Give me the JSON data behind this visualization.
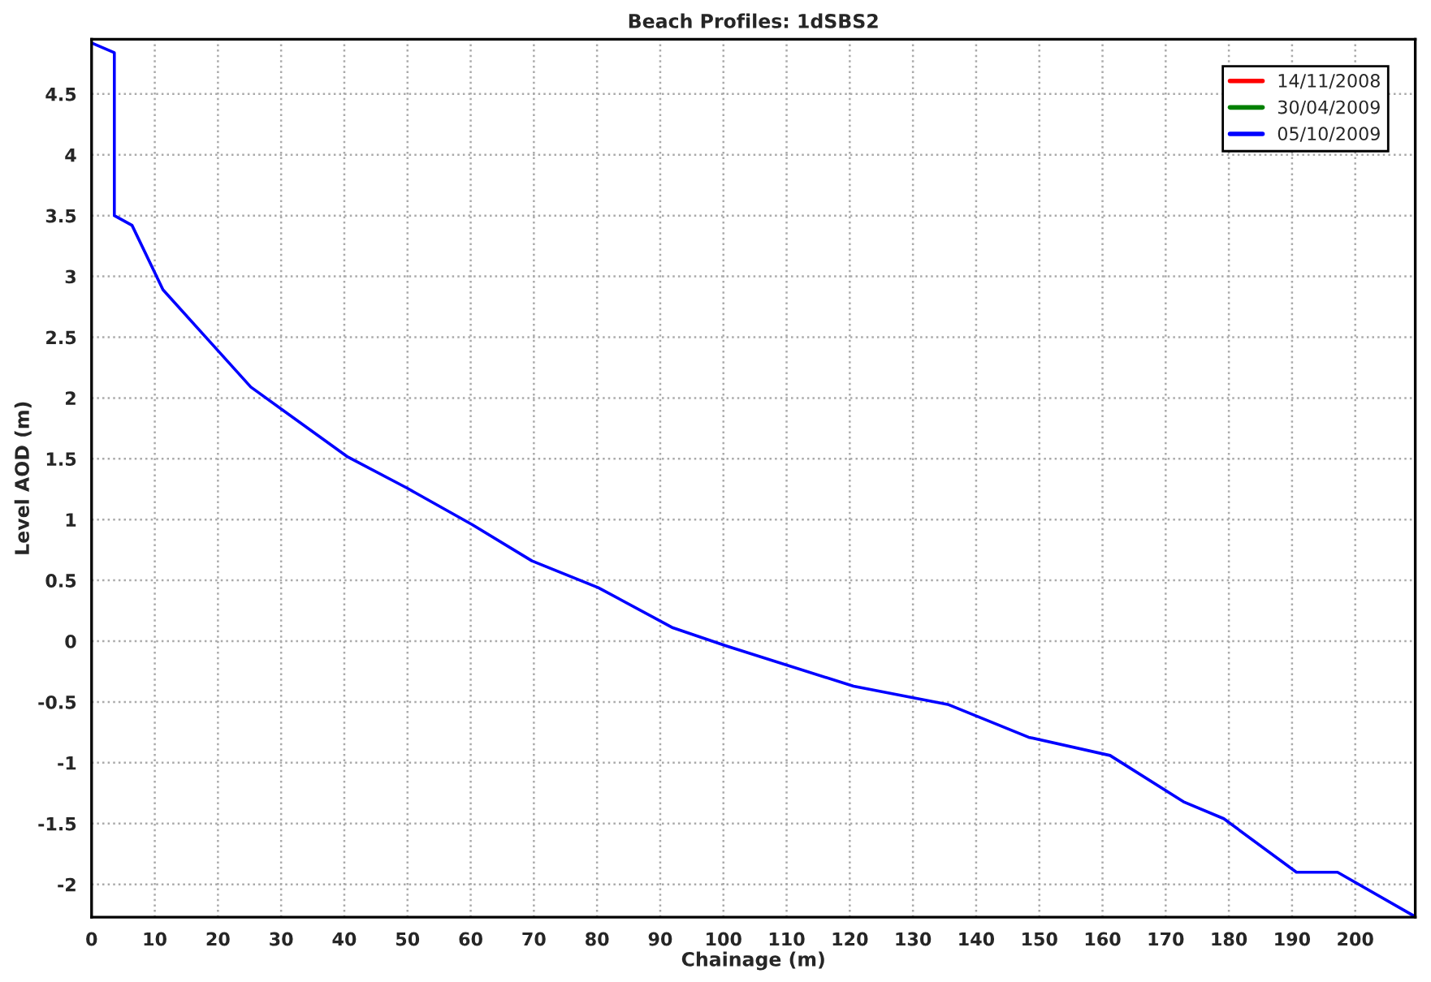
{
  "chart_data": {
    "type": "line",
    "title": "Beach Profiles: 1dSBS2",
    "xlabel": "Chainage (m)",
    "ylabel": "Level AOD (m)",
    "xlim": [
      0,
      209.5
    ],
    "ylim": [
      -2.27,
      4.95
    ],
    "xticks": [
      0,
      10,
      20,
      30,
      40,
      50,
      60,
      70,
      80,
      90,
      100,
      110,
      120,
      130,
      140,
      150,
      160,
      170,
      180,
      190,
      200
    ],
    "yticks": [
      -2,
      -1.5,
      -1,
      -0.5,
      0,
      0.5,
      1,
      1.5,
      2,
      2.5,
      3,
      3.5,
      4,
      4.5
    ],
    "grid": true,
    "legend": "top right",
    "line_style": "solid",
    "series": [
      {
        "name": "14/11/2008",
        "color": "#ff0000"
      },
      {
        "name": "30/04/2009",
        "color": "#008000"
      },
      {
        "name": "05/10/2009",
        "color": "#0000ff",
        "x": [
          0,
          3.6,
          3.6,
          6.4,
          11.3,
          25.2,
          40.4,
          49.9,
          60.2,
          69.7,
          80.2,
          92,
          100.5,
          120.6,
          135.5,
          148.3,
          161.2,
          172.8,
          179.2,
          190.7,
          197.2,
          209.3
        ],
        "values": [
          4.92,
          4.84,
          3.5,
          3.42,
          2.89,
          2.09,
          1.52,
          1.26,
          0.96,
          0.66,
          0.44,
          0.11,
          -0.04,
          -0.37,
          -0.52,
          -0.79,
          -0.94,
          -1.32,
          -1.46,
          -1.9,
          -1.9,
          -2.26
        ]
      }
    ]
  }
}
